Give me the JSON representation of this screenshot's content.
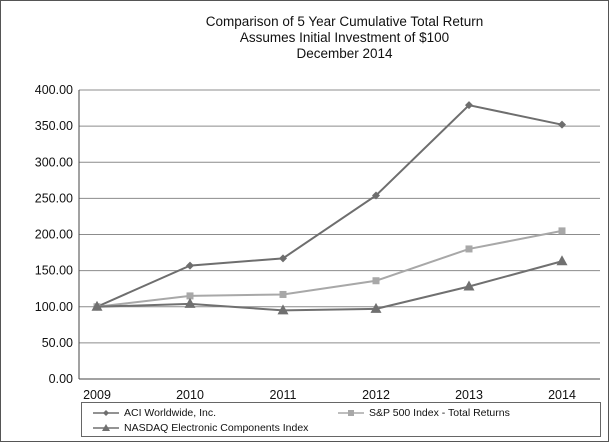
{
  "chart_data": {
    "type": "line",
    "title": "Comparison of 5 Year Cumulative Total Return",
    "subtitle_lines": [
      "Assumes Initial Investment of $100",
      "December 2014"
    ],
    "xlabel": "",
    "ylabel": "",
    "categories": [
      "2009",
      "2010",
      "2011",
      "2012",
      "2013",
      "2014"
    ],
    "ylim": [
      0,
      400
    ],
    "yticks": [
      "0.00",
      "50.00",
      "100.00",
      "150.00",
      "200.00",
      "250.00",
      "300.00",
      "350.00",
      "400.00"
    ],
    "grid": true,
    "legend_position": "bottom",
    "series": [
      {
        "name": "ACI Worldwide, Inc.",
        "marker": "diamond",
        "color": "#6e6e6e",
        "values": [
          100,
          157,
          167,
          254,
          379,
          352
        ]
      },
      {
        "name": "S&P 500 Index - Total Returns",
        "marker": "square",
        "color": "#a8a8a8",
        "values": [
          100,
          115,
          117,
          136,
          180,
          205
        ]
      },
      {
        "name": "NASDAQ Electronic Components Index",
        "marker": "triangle",
        "color": "#707070",
        "values": [
          100,
          104,
          95,
          97,
          128,
          163
        ]
      }
    ]
  }
}
